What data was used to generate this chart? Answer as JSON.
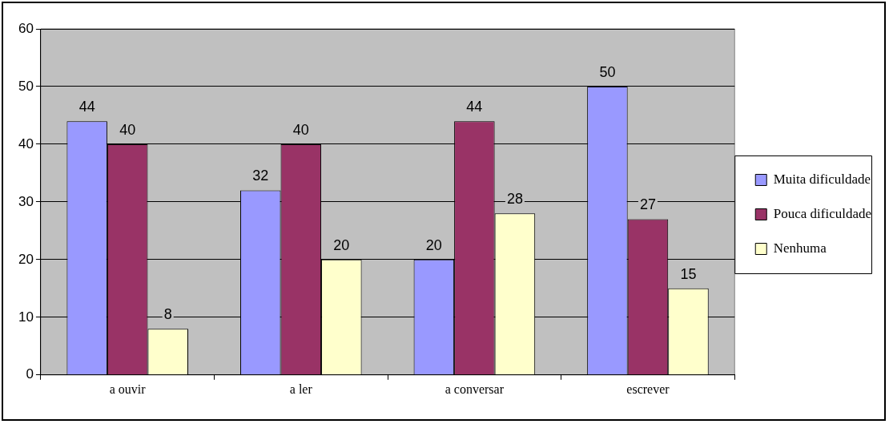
{
  "chart_data": {
    "type": "bar",
    "categories": [
      "a ouvir",
      "a ler",
      "a conversar",
      "escrever"
    ],
    "series": [
      {
        "name": "Muita dificuldade",
        "color": "#9999ff",
        "values": [
          44,
          32,
          20,
          50
        ]
      },
      {
        "name": "Pouca dificuldade",
        "color": "#993366",
        "values": [
          40,
          40,
          44,
          27
        ]
      },
      {
        "name": "Nenhuma",
        "color": "#ffffcc",
        "values": [
          8,
          20,
          28,
          15
        ]
      }
    ],
    "ylim": [
      0,
      60
    ],
    "yticks": [
      0,
      10,
      20,
      30,
      40,
      50,
      60
    ],
    "grid": "y",
    "legend": "right",
    "data_labels": true
  }
}
